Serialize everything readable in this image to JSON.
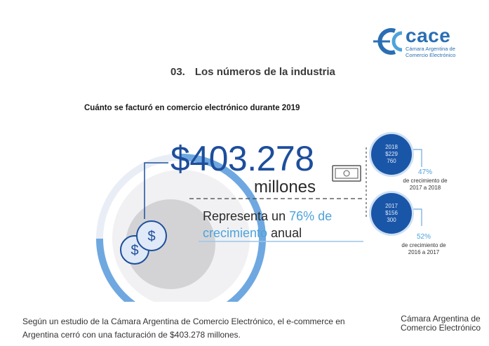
{
  "logo": {
    "name": "cace",
    "subtitle_line1": "Cámara Argentina de",
    "subtitle_line2": "Comercio Electrónico"
  },
  "section": {
    "number": "03.",
    "title": "Los números de la industria"
  },
  "question": "Cuánto se facturó en comercio electrónico durante 2019",
  "amount": "$403.278",
  "amount_unit": "millones",
  "growth": {
    "prefix": "Representa un ",
    "percent": "76% de",
    "highlight_word": "crecimiento",
    "suffix": " anual"
  },
  "history": [
    {
      "year": "2018",
      "value_line1": "$229",
      "value_line2": "760",
      "percent": "47%",
      "label_line1": "de crecimiento de",
      "label_line2": "2017 a 2018"
    },
    {
      "year": "2017",
      "value_line1": "$156",
      "value_line2": "300",
      "percent": "52%",
      "label_line1": "de crecimiento de",
      "label_line2": "2016 a 2017"
    }
  ],
  "caption": "Según un estudio de la Cámara Argentina de Comercio Electrónico, el e-commerce en Argentina cerró con una facturación de $403.278 millones.",
  "credit": "Cámara Argentina de Comercio Electrónico",
  "colors": {
    "brand_blue": "#1d4e9c",
    "accent_light_blue": "#4da3dc",
    "ring_blue": "#6fa8e0",
    "coin_fill": "#dfe9f7"
  }
}
